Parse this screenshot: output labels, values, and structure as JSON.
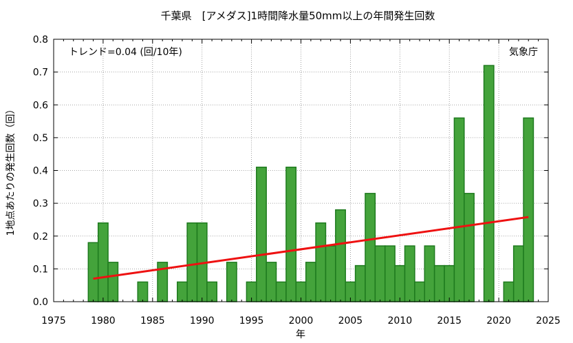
{
  "chart_data": {
    "type": "bar",
    "title": "千葉県　[アメダス]1時間降水量50mm以上の年間発生回数",
    "xlabel": "年",
    "ylabel": "1地点あたりの発生回数（回）",
    "xlim": [
      1975,
      2025
    ],
    "ylim": [
      0,
      0.8
    ],
    "x_ticks": [
      "1975",
      "1980",
      "1985",
      "1990",
      "1995",
      "2000",
      "2005",
      "2010",
      "2015",
      "2020",
      "2025"
    ],
    "y_ticks": [
      "0.0",
      "0.1",
      "0.2",
      "0.3",
      "0.4",
      "0.5",
      "0.6",
      "0.7",
      "0.8"
    ],
    "grid": true,
    "bar_color": "#44a33b",
    "bar_edge_color": "#1e7a1e",
    "trend_color": "#ee1111",
    "trend_text": "トレンド=0.04 (回/10年)",
    "source_text": "気象庁",
    "trend_line": {
      "x": [
        1979,
        2023
      ],
      "y": [
        0.07,
        0.258
      ]
    },
    "x": [
      1979,
      1980,
      1981,
      1982,
      1983,
      1984,
      1985,
      1986,
      1987,
      1988,
      1989,
      1990,
      1991,
      1992,
      1993,
      1994,
      1995,
      1996,
      1997,
      1998,
      1999,
      2000,
      2001,
      2002,
      2003,
      2004,
      2005,
      2006,
      2007,
      2008,
      2009,
      2010,
      2011,
      2012,
      2013,
      2014,
      2015,
      2016,
      2017,
      2018,
      2019,
      2020,
      2021,
      2022,
      2023
    ],
    "values": [
      0.18,
      0.24,
      0.12,
      0,
      0,
      0.06,
      0,
      0.12,
      0,
      0.06,
      0.24,
      0.24,
      0.06,
      0,
      0.12,
      0,
      0.06,
      0.41,
      0.12,
      0.06,
      0.41,
      0.06,
      0.12,
      0.24,
      0.17,
      0.28,
      0.06,
      0.11,
      0.33,
      0.17,
      0.17,
      0.11,
      0.17,
      0.06,
      0.17,
      0.11,
      0.11,
      0.56,
      0.33,
      0,
      0.72,
      0,
      0.06,
      0.17,
      0.56
    ]
  }
}
